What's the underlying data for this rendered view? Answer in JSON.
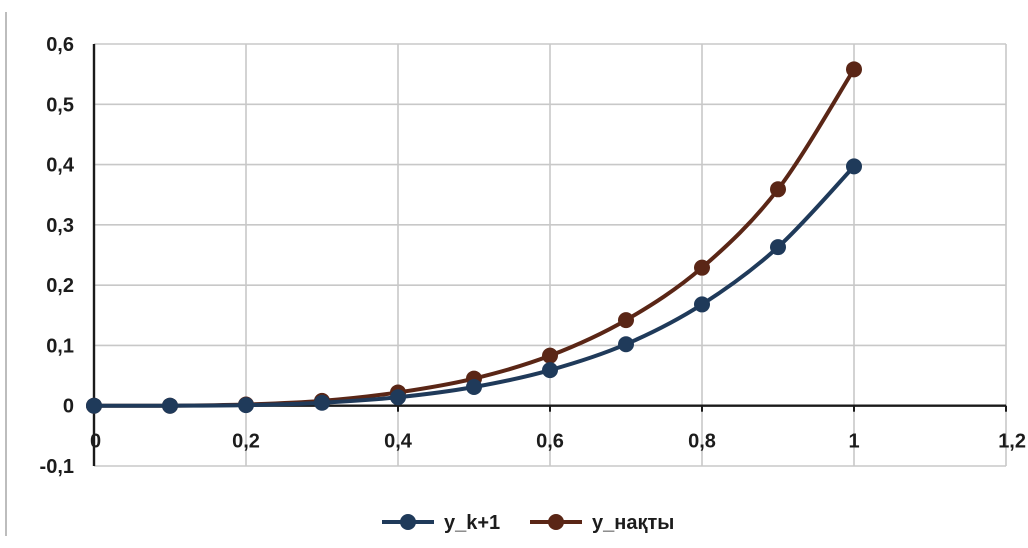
{
  "chart_data": {
    "type": "line",
    "title": "",
    "xlabel": "",
    "ylabel": "",
    "xlim": [
      0,
      1.2
    ],
    "ylim": [
      -0.1,
      0.6
    ],
    "xticks": [
      0,
      0.2,
      0.4,
      0.6,
      0.8,
      1,
      1.2
    ],
    "yticks": [
      -0.1,
      0,
      0.1,
      0.2,
      0.3,
      0.4,
      0.5,
      0.6
    ],
    "xtick_labels": [
      "0",
      "0,2",
      "0,4",
      "0,6",
      "0,8",
      "1",
      "1,2"
    ],
    "ytick_labels": [
      "-0,1",
      "0",
      "0,1",
      "0,2",
      "0,3",
      "0,4",
      "0,5",
      "0,6"
    ],
    "grid": true,
    "legend_position": "bottom-center",
    "x": [
      0,
      0.1,
      0.2,
      0.3,
      0.4,
      0.5,
      0.6,
      0.7,
      0.8,
      0.9,
      1
    ],
    "series": [
      {
        "name": "y_k+1",
        "color": "#1f3a5a",
        "values": [
          0,
          0,
          0.001,
          0.005,
          0.014,
          0.031,
          0.059,
          0.102,
          0.168,
          0.263,
          0.397
        ]
      },
      {
        "name": "y_нақты",
        "color": "#5a2616",
        "values": [
          0,
          0,
          0.002,
          0.008,
          0.022,
          0.045,
          0.083,
          0.142,
          0.229,
          0.359,
          0.558
        ]
      }
    ]
  }
}
